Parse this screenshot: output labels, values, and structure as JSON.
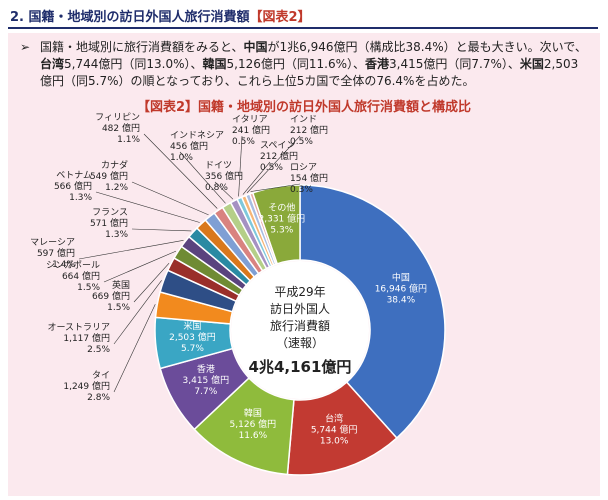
{
  "heading": {
    "main": "2. 国籍・地域別の訪日外国人旅行消費額",
    "tag": "【図表2】"
  },
  "summary": {
    "bullet": "➢",
    "parts": [
      {
        "t": "国籍・地域別に旅行消費額をみると、",
        "b": false
      },
      {
        "t": "中国",
        "b": true
      },
      {
        "t": "が1兆6,946億円（構成比38.4%）と最も大きい。次いで、",
        "b": false
      },
      {
        "t": "台湾",
        "b": true
      },
      {
        "t": "5,744億円（同13.0%）、",
        "b": false
      },
      {
        "t": "韓国",
        "b": true
      },
      {
        "t": "5,126億円（同11.6%）、",
        "b": false
      },
      {
        "t": "香港",
        "b": true
      },
      {
        "t": "3,415億円（同7.7%）、",
        "b": false
      },
      {
        "t": "米国",
        "b": true
      },
      {
        "t": "2,503億円（同5.7%）の順となっており、これら上位5カ国で全体の76.4%を占めた。",
        "b": false
      }
    ]
  },
  "chart_title": "【図表2】国籍・地域別の訪日外国人旅行消費額と構成比",
  "center": {
    "line1": "平成29年",
    "line2": "訪日外国人",
    "line3": "旅行消費額",
    "line4": "（速報）",
    "total": "4兆4,161億円"
  },
  "chart_data": {
    "type": "pie",
    "unit": "億円",
    "slices": [
      {
        "label": "中国",
        "value": 16946,
        "value_text": "16,946 億円",
        "pct": "38.4%",
        "color": "#3e6fbf"
      },
      {
        "label": "台湾",
        "value": 5744,
        "value_text": "5,744 億円",
        "pct": "13.0%",
        "color": "#c23a32"
      },
      {
        "label": "韓国",
        "value": 5126,
        "value_text": "5,126 億円",
        "pct": "11.6%",
        "color": "#8fbb3c"
      },
      {
        "label": "香港",
        "value": 3415,
        "value_text": "3,415 億円",
        "pct": "7.7%",
        "color": "#6b4c9a"
      },
      {
        "label": "米国",
        "value": 2503,
        "value_text": "2,503 億円",
        "pct": "5.7%",
        "color": "#3aa6c4"
      },
      {
        "label": "タイ",
        "value": 1249,
        "value_text": "1,249 億円",
        "pct": "2.8%",
        "color": "#f28a1e"
      },
      {
        "label": "オーストラリア",
        "value": 1117,
        "value_text": "1,117 億円",
        "pct": "2.5%",
        "color": "#2e4e86"
      },
      {
        "label": "英国",
        "value": 669,
        "value_text": "669 億円",
        "pct": "1.5%",
        "color": "#9a2f2a"
      },
      {
        "label": "シンガポール",
        "value": 664,
        "value_text": "664 億円",
        "pct": "1.5%",
        "color": "#6f8b33"
      },
      {
        "label": "マレーシア",
        "value": 597,
        "value_text": "597 億円",
        "pct": "1.4%",
        "color": "#5a437e"
      },
      {
        "label": "フランス",
        "value": 571,
        "value_text": "571 億円",
        "pct": "1.3%",
        "color": "#2a8aa3"
      },
      {
        "label": "ベトナム",
        "value": 566,
        "value_text": "566 億円",
        "pct": "1.3%",
        "color": "#d9781c"
      },
      {
        "label": "カナダ",
        "value": 549,
        "value_text": "549 億円",
        "pct": "1.2%",
        "color": "#7f9fd4"
      },
      {
        "label": "フィリピン",
        "value": 482,
        "value_text": "482 億円",
        "pct": "1.1%",
        "color": "#d98380"
      },
      {
        "label": "インドネシア",
        "value": 456,
        "value_text": "456 億円",
        "pct": "1.0%",
        "color": "#b5cf88"
      },
      {
        "label": "ドイツ",
        "value": 356,
        "value_text": "356 億円",
        "pct": "0.8%",
        "color": "#a591c2"
      },
      {
        "label": "イタリア",
        "value": 241,
        "value_text": "241 億円",
        "pct": "0.5%",
        "color": "#7fc8dc"
      },
      {
        "label": "スペイン",
        "value": 212,
        "value_text": "212 億円",
        "pct": "0.5%",
        "color": "#f6b577"
      },
      {
        "label": "インド",
        "value": 212,
        "value_text": "212 億円",
        "pct": "0.5%",
        "color": "#a8bde3"
      },
      {
        "label": "ロシア",
        "value": 154,
        "value_text": "154 億円",
        "pct": "0.3%",
        "color": "#e7a9a6"
      },
      {
        "label": "その他",
        "value": 2331,
        "value_text": "2,331 億円",
        "pct": "5.3%",
        "color": "#8aa93a"
      }
    ]
  }
}
